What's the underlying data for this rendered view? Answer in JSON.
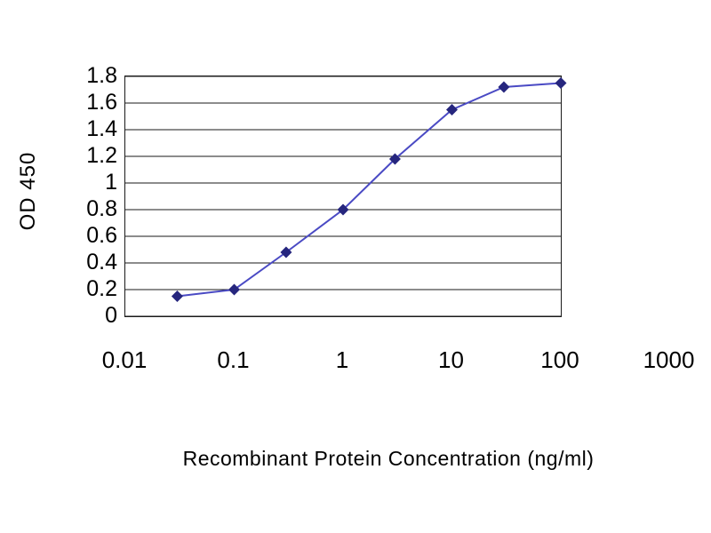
{
  "chart_data": {
    "type": "line",
    "title": "",
    "xlabel": "Recombinant Protein Concentration (ng/ml)",
    "ylabel": "OD 450",
    "x_scale": "log",
    "x": [
      0.03,
      0.1,
      0.3,
      1,
      3,
      10,
      30,
      100
    ],
    "series": [
      {
        "name": "OD 450",
        "values": [
          0.15,
          0.2,
          0.48,
          0.8,
          1.18,
          1.55,
          1.72,
          1.75
        ],
        "line_color": "#4a4ac4",
        "marker_color": "#26267e",
        "marker": "diamond"
      }
    ],
    "x_ticks": [
      "0.01",
      "0.1",
      "1",
      "10",
      "100",
      "1000"
    ],
    "x_tick_values": [
      0.01,
      0.1,
      1,
      10,
      100,
      1000
    ],
    "y_ticks": [
      "0",
      "0.2",
      "0.4",
      "0.6",
      "0.8",
      "1",
      "1.2",
      "1.4",
      "1.6",
      "1.8"
    ],
    "y_tick_values": [
      0,
      0.2,
      0.4,
      0.6,
      0.8,
      1,
      1.2,
      1.4,
      1.6,
      1.8
    ],
    "xlim": [
      0.01,
      100
    ],
    "ylim": [
      0,
      1.8
    ],
    "grid": "horizontal",
    "grid_color": "#1a1a1a",
    "axis_color": "#1a1a1a",
    "legend": "none"
  }
}
